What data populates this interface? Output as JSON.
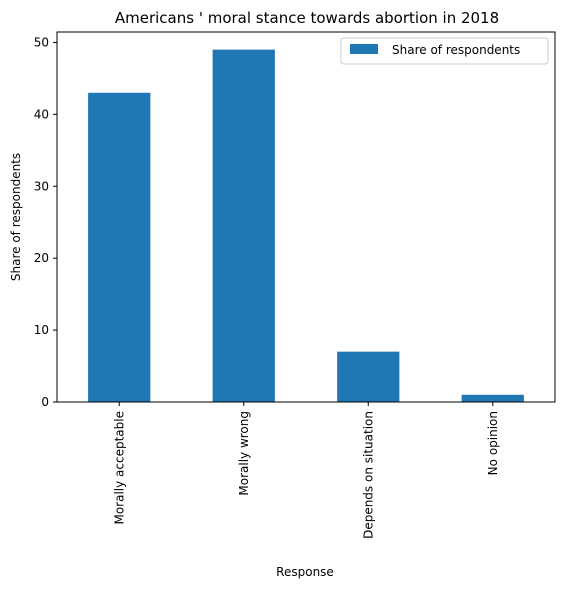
{
  "chart_data": {
    "type": "bar",
    "title": "Americans ' moral stance towards abortion in 2018",
    "xlabel": "Response",
    "ylabel": "Share of respondents",
    "categories": [
      "Morally acceptable",
      "Morally wrong",
      "Depends on situation",
      "No opinion"
    ],
    "series": [
      {
        "name": "Share of respondents",
        "values": [
          43,
          49,
          7,
          1
        ],
        "color": "#1f77b4"
      }
    ],
    "ylim": [
      0,
      51.45
    ],
    "yticks": [
      0,
      10,
      20,
      30,
      40,
      50
    ],
    "grid": false,
    "legend_position": "top-right"
  }
}
